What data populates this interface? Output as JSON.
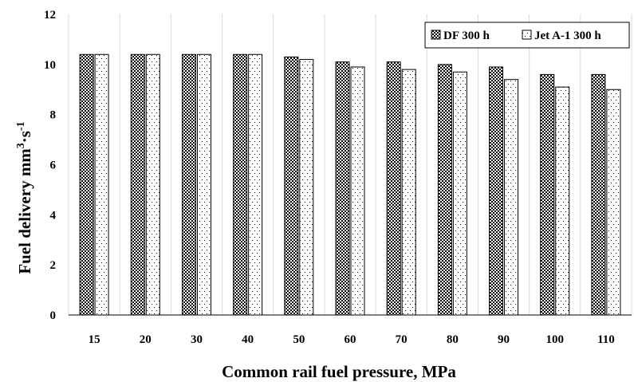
{
  "chart_data": {
    "type": "bar",
    "title": "",
    "xlabel": "Common rail fuel pressure, MPa",
    "ylabel": {
      "text": "Fuel delivery mm",
      "sup1": "3",
      "mid": "·s",
      "sup2": "-1"
    },
    "categories": [
      "15",
      "20",
      "30",
      "40",
      "50",
      "60",
      "70",
      "80",
      "90",
      "100",
      "110"
    ],
    "series": [
      {
        "name": "DF 300 h",
        "values": [
          10.4,
          10.4,
          10.4,
          10.4,
          10.3,
          10.1,
          10.1,
          10.0,
          9.9,
          9.6,
          9.6
        ],
        "pattern": "dark-check"
      },
      {
        "name": "Jet A-1 300 h",
        "values": [
          10.4,
          10.4,
          10.4,
          10.4,
          10.2,
          9.9,
          9.8,
          9.7,
          9.4,
          9.1,
          9.0
        ],
        "pattern": "dots"
      }
    ],
    "ylim": [
      0,
      12
    ],
    "yticks": [
      "0",
      "2",
      "4",
      "6",
      "8",
      "10",
      "12"
    ],
    "grid": {
      "vertical": true,
      "horizontal": false
    },
    "legend": "top-right"
  }
}
